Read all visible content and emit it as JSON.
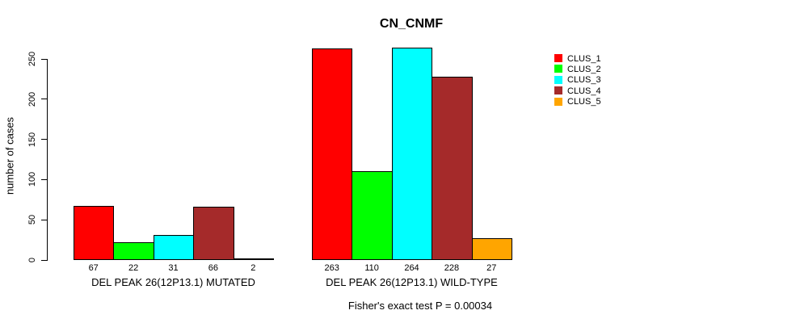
{
  "chart_data": {
    "type": "bar",
    "title": "CN_CNMF",
    "ylabel": "number of cases",
    "ylim": [
      0,
      250
    ],
    "yticks": [
      0,
      50,
      100,
      150,
      200,
      250
    ],
    "grid": false,
    "legend_position": "right",
    "categories": [
      "DEL PEAK 26(12P13.1) MUTATED",
      "DEL PEAK 26(12P13.1) WILD-TYPE"
    ],
    "series": [
      {
        "name": "CLUS_1",
        "color": "#FF0000",
        "values": [
          67,
          263
        ]
      },
      {
        "name": "CLUS_2",
        "color": "#00FF00",
        "values": [
          22,
          110
        ]
      },
      {
        "name": "CLUS_3",
        "color": "#00FFFF",
        "values": [
          31,
          264
        ]
      },
      {
        "name": "CLUS_4",
        "color": "#A52A2A",
        "values": [
          66,
          228
        ]
      },
      {
        "name": "CLUS_5",
        "color": "#FFA500",
        "values": [
          2,
          27
        ]
      }
    ],
    "bar_value_labels": [
      [
        "67",
        "22",
        "31",
        "66",
        "2"
      ],
      [
        "263",
        "110",
        "264",
        "228",
        "27"
      ]
    ],
    "annotation": "Fisher's exact test P = 0.00034"
  }
}
